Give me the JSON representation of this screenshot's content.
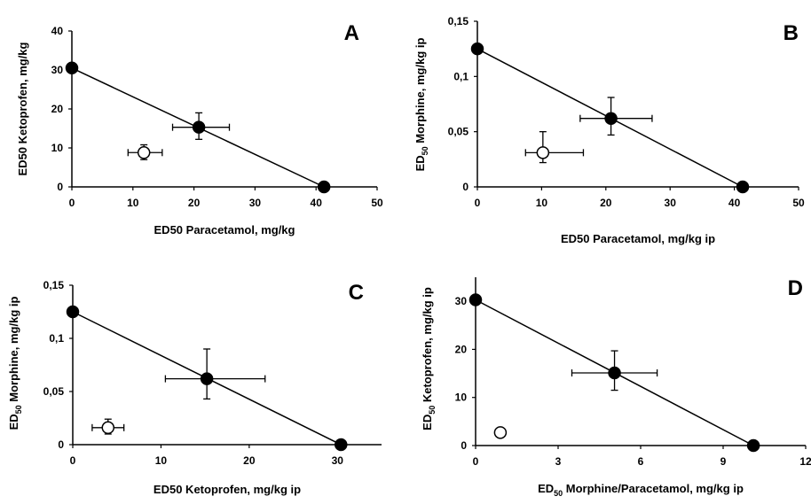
{
  "chart_data": [
    {
      "type": "scatter",
      "panel_label": "A",
      "xlabel": "ED50 Paracetamol, mg/kg",
      "ylabel": "ED50 Ketoprofen, mg/kg",
      "xlim": [
        0,
        50
      ],
      "ylim": [
        0,
        40
      ],
      "xticks": [
        "0",
        "10",
        "20",
        "30",
        "40",
        "50"
      ],
      "yticks": [
        "0",
        "10",
        "20",
        "30",
        "40"
      ],
      "xtick_values": [
        0,
        10,
        20,
        30,
        40,
        50
      ],
      "ytick_values": [
        0,
        10,
        20,
        30,
        40
      ],
      "line": [
        [
          0,
          30.5
        ],
        [
          41.3,
          0
        ]
      ],
      "points": [
        {
          "x": 0,
          "y": 30.5,
          "filled": true
        },
        {
          "x": 41.3,
          "y": 0,
          "filled": true
        },
        {
          "x": 20.8,
          "y": 15.3,
          "filled": true,
          "xerr": [
            16.5,
            25.8
          ],
          "yerr": [
            12.2,
            19
          ]
        },
        {
          "x": 11.8,
          "y": 8.8,
          "filled": false,
          "xerr": [
            9.2,
            14.8
          ],
          "yerr": [
            7,
            10.8
          ]
        }
      ]
    },
    {
      "type": "scatter",
      "panel_label": "B",
      "xlabel": "ED50 Paracetamol, mg/kg ip",
      "ylabel": "ED50 Morphine, mg/kg ip",
      "ylabel_main": "ED",
      "ylabel_sub": "50",
      "ylabel_rest": " Morphine, mg/kg ip",
      "xlim": [
        0,
        50
      ],
      "ylim": [
        0,
        0.15
      ],
      "xticks": [
        "0",
        "10",
        "20",
        "30",
        "40",
        "50"
      ],
      "yticks": [
        "0",
        "0,05",
        "0,1",
        "0,15"
      ],
      "xtick_values": [
        0,
        10,
        20,
        30,
        40,
        50
      ],
      "ytick_values": [
        0,
        0.05,
        0.1,
        0.15
      ],
      "line": [
        [
          0,
          0.125
        ],
        [
          41.3,
          0
        ]
      ],
      "points": [
        {
          "x": 0,
          "y": 0.125,
          "filled": true
        },
        {
          "x": 41.3,
          "y": 0,
          "filled": true
        },
        {
          "x": 20.8,
          "y": 0.062,
          "filled": true,
          "xerr": [
            16,
            27.2
          ],
          "yerr": [
            0.047,
            0.081
          ]
        },
        {
          "x": 10.2,
          "y": 0.031,
          "filled": false,
          "xerr": [
            7.5,
            16.5
          ],
          "yerr": [
            0.022,
            0.05
          ]
        }
      ]
    },
    {
      "type": "scatter",
      "panel_label": "C",
      "xlabel": "ED50 Ketoprofen, mg/kg ip",
      "ylabel": "ED50 Morphine, mg/kg ip",
      "ylabel_main": "ED",
      "ylabel_sub": "50",
      "ylabel_rest": " Morphine, mg/kg ip",
      "xlim": [
        0,
        35
      ],
      "ylim": [
        0,
        0.15
      ],
      "xticks": [
        "0",
        "10",
        "20",
        "30"
      ],
      "yticks": [
        "0",
        "0,05",
        "0,1",
        "0,15"
      ],
      "xtick_values": [
        0,
        10,
        20,
        30
      ],
      "ytick_values": [
        0,
        0.05,
        0.1,
        0.15
      ],
      "line": [
        [
          0,
          0.125
        ],
        [
          30.4,
          0
        ]
      ],
      "points": [
        {
          "x": 0,
          "y": 0.125,
          "filled": true
        },
        {
          "x": 30.4,
          "y": 0,
          "filled": true
        },
        {
          "x": 15.2,
          "y": 0.062,
          "filled": true,
          "xerr": [
            10.5,
            21.8
          ],
          "yerr": [
            0.043,
            0.09
          ]
        },
        {
          "x": 4,
          "y": 0.016,
          "filled": false,
          "xerr": [
            2.2,
            5.8
          ],
          "yerr": [
            0.01,
            0.024
          ]
        }
      ]
    },
    {
      "type": "scatter",
      "panel_label": "D",
      "xlabel": "ED50 Morphine/Paracetamol, mg/kg ip",
      "xlabel_main": "ED",
      "xlabel_sub": "50",
      "xlabel_rest": " Morphine/Paracetamol, mg/kg ip",
      "ylabel": "ED50 Ketoprofen, mg/kg ip",
      "ylabel_main": "ED",
      "ylabel_sub": "50",
      "ylabel_rest": " Ketoprofen, mg/kg ip",
      "xlim": [
        0,
        12
      ],
      "ylim": [
        0,
        35
      ],
      "xticks": [
        "0",
        "3",
        "6",
        "9",
        "12"
      ],
      "yticks": [
        "0",
        "10",
        "20",
        "30"
      ],
      "xtick_values": [
        0,
        3,
        6,
        9,
        12
      ],
      "ytick_values": [
        0,
        10,
        20,
        30
      ],
      "line": [
        [
          0,
          30.3
        ],
        [
          10.1,
          0
        ]
      ],
      "points": [
        {
          "x": 0,
          "y": 30.3,
          "filled": true
        },
        {
          "x": 10.1,
          "y": 0,
          "filled": true
        },
        {
          "x": 5.05,
          "y": 15.1,
          "filled": true,
          "xerr": [
            3.5,
            6.6
          ],
          "yerr": [
            11.5,
            19.7
          ]
        },
        {
          "x": 0.9,
          "y": 2.7,
          "filled": false,
          "xerr": [
            0.75,
            1.05
          ],
          "yerr": [
            2.2,
            3.2
          ]
        }
      ]
    }
  ]
}
